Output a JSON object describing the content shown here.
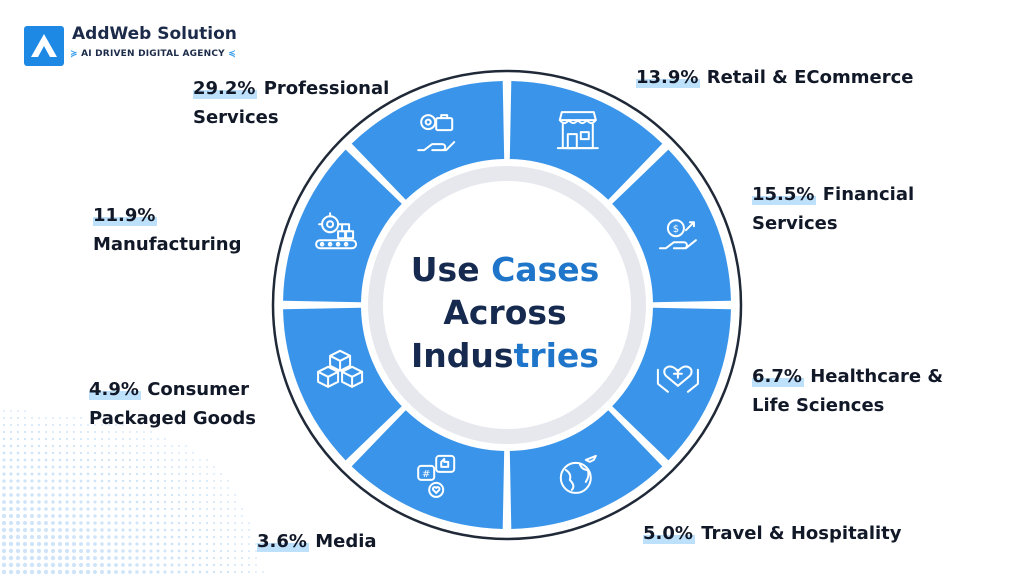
{
  "brand": {
    "name": "AddWeb Solution",
    "tagline_left": "≽",
    "tagline": "AI DRIVEN DIGITAL AGENCY",
    "tagline_right": "≼"
  },
  "center": {
    "word1": "Use",
    "word2": "Cases",
    "word3": "Across",
    "word4": "Industries"
  },
  "segments": [
    {
      "id": "professional",
      "pct": "29.2%",
      "label_line1": "Professional",
      "label_line2": "Services",
      "icon": "gear-briefcase-hand-icon"
    },
    {
      "id": "retail",
      "pct": "13.9%",
      "label_line1": "Retail & ECommerce",
      "label_line2": "",
      "icon": "storefront-icon"
    },
    {
      "id": "financial",
      "pct": "15.5%",
      "label_line1": "Financial",
      "label_line2": "Services",
      "icon": "money-growth-hand-icon"
    },
    {
      "id": "healthcare",
      "pct": "6.7%",
      "label_line1": "Healthcare &",
      "label_line2": "Life Sciences",
      "icon": "heart-cross-hands-icon"
    },
    {
      "id": "travel",
      "pct": "5.0%",
      "label_line1": "Travel & Hospitality",
      "label_line2": "",
      "icon": "globe-airplane-icon"
    },
    {
      "id": "media",
      "pct": "3.6%",
      "label_line1": "Media",
      "label_line2": "",
      "icon": "social-media-icon"
    },
    {
      "id": "consumer",
      "pct": "4.9%",
      "label_line1": "Consumer",
      "label_line2": "Packaged Goods",
      "icon": "stacked-boxes-icon"
    },
    {
      "id": "manufacturing",
      "pct": "11.9%",
      "label_line1": "Manufacturing",
      "label_line2": "",
      "icon": "gear-conveyor-icon"
    }
  ],
  "colors": {
    "segment_fill": "#3a95ea",
    "ring_stroke": "#1f2937",
    "highlight": "#bde0fb",
    "title_dark": "#152a4e",
    "title_blue": "#1e75c9"
  }
}
